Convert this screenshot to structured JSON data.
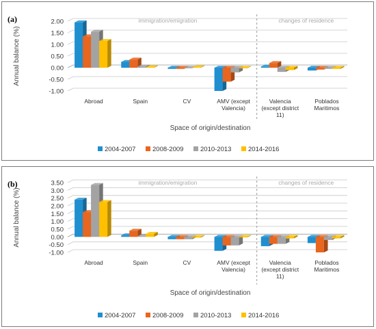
{
  "colors": {
    "series": [
      "#1f8fd0",
      "#e8661f",
      "#a3a3a3",
      "#ffc000"
    ],
    "grid": "#c8c8c8",
    "divider": "#9a9a9a"
  },
  "chart_data": [
    {
      "type": "bar",
      "panel_label": "(a)",
      "ylabel": "Annual balance (%)",
      "xlabel": "Space of origin/destination",
      "y_ticks": [
        "2.00",
        "1.50",
        "1.00",
        "0.50",
        "0.00",
        "-0.50",
        "-1.00"
      ],
      "ylim": [
        -1.0,
        2.0
      ],
      "grid": true,
      "legend_position": "bottom",
      "categories": [
        "Abroad",
        "Spain",
        "CV",
        "AMV (except Valencia)",
        "Valencia (except district 11)",
        "Poblados Maritimos"
      ],
      "category_labels": [
        [
          "Abroad"
        ],
        [
          "Spain"
        ],
        [
          "CV"
        ],
        [
          "AMV (except",
          "Valencia)"
        ],
        [
          "Valencia",
          "(except district",
          "11)"
        ],
        [
          "Poblados",
          "Maritimos"
        ]
      ],
      "section_labels": [
        "immigration/emigration",
        "changes of residence"
      ],
      "series": [
        {
          "name": "2004-2007",
          "values": [
            1.95,
            0.25,
            -0.05,
            -1.0,
            0.05,
            -0.12
          ]
        },
        {
          "name": "2008-2009",
          "values": [
            1.35,
            0.35,
            -0.05,
            -0.6,
            0.2,
            -0.08
          ]
        },
        {
          "name": "2010-2013",
          "values": [
            1.55,
            0.05,
            0.0,
            -0.2,
            -0.18,
            -0.05
          ]
        },
        {
          "name": "2014-2016",
          "values": [
            1.15,
            0.02,
            0.02,
            0.0,
            -0.1,
            -0.05
          ]
        }
      ]
    },
    {
      "type": "bar",
      "panel_label": "(b)",
      "ylabel": "Annual balance (%)",
      "xlabel": "Space of origin/destination",
      "y_ticks": [
        "3.50",
        "3.00",
        "2.50",
        "2.00",
        "1.50",
        "1.00",
        "0.50",
        "0.00",
        "-0.50",
        "-1.00"
      ],
      "ylim": [
        -1.0,
        3.5
      ],
      "grid": true,
      "legend_position": "bottom",
      "categories": [
        "Abroad",
        "Spain",
        "CV",
        "AMV (except Valencia)",
        "Valencia (except district 11)",
        "Poblados Maritimos"
      ],
      "category_labels": [
        [
          "Abroad"
        ],
        [
          "Spain"
        ],
        [
          "CV"
        ],
        [
          "AMV (except",
          "Valencia)"
        ],
        [
          "Valencia",
          "(except district",
          "11)"
        ],
        [
          "Poblados",
          "Maritimos"
        ]
      ],
      "section_labels": [
        "immigration/emigration",
        "changes of residence"
      ],
      "series": [
        {
          "name": "2004-2007",
          "values": [
            2.4,
            0.1,
            -0.15,
            -0.9,
            -0.6,
            -0.4
          ]
        },
        {
          "name": "2008-2009",
          "values": [
            1.6,
            0.4,
            -0.15,
            -0.55,
            -0.45,
            -1.0
          ]
        },
        {
          "name": "2010-2013",
          "values": [
            3.35,
            0.05,
            -0.15,
            -0.55,
            -0.45,
            -0.2
          ]
        },
        {
          "name": "2014-2016",
          "values": [
            2.25,
            0.2,
            -0.05,
            0.0,
            -0.1,
            -0.1
          ]
        }
      ]
    }
  ]
}
